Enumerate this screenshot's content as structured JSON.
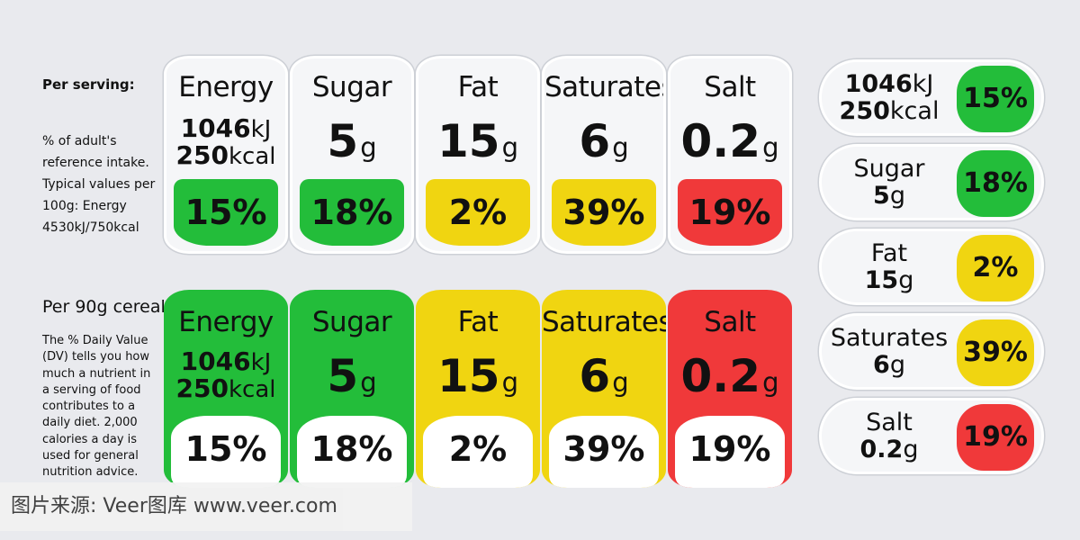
{
  "left": {
    "per_serving": "Per serving:",
    "reference_note_lines": [
      "% of adult's",
      "reference intake.",
      "Typical values per",
      "100g: Energy",
      "4530kJ/750kcal"
    ],
    "per_cereal": "Per 90g cereal:",
    "daily_value_lines": [
      "The % Daily Value",
      "(DV) tells you how",
      "much a nutrient in",
      "a serving of food",
      "contributes to a",
      "daily diet. 2,000",
      "calories a day is",
      "used for general",
      "nutrition advice."
    ]
  },
  "nutrients": [
    {
      "name": "Energy",
      "kj": "1046",
      "kj_unit": "kJ",
      "kcal": "250",
      "kcal_unit": "kcal",
      "pct": "15%",
      "color": "#23bd3a"
    },
    {
      "name": "Sugar",
      "value": "5",
      "unit": "g",
      "pct": "18%",
      "color": "#23bd3a"
    },
    {
      "name": "Fat",
      "value": "15",
      "unit": "g",
      "pct": "2%",
      "color": "#f0d511"
    },
    {
      "name": "Saturates",
      "value": "6",
      "unit": "g",
      "pct": "39%",
      "color": "#f0d511"
    },
    {
      "name": "Salt",
      "value": "0.2",
      "unit": "g",
      "pct": "19%",
      "color": "#f0393a"
    }
  ],
  "watermark": "图片来源: Veer图库 www.veer.com"
}
